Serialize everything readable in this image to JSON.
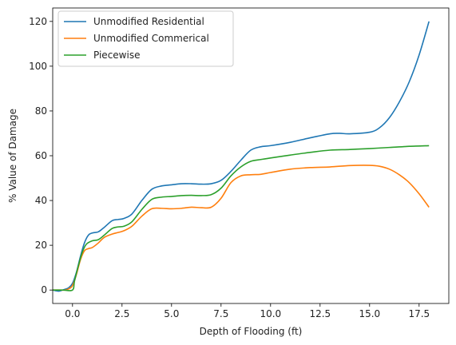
{
  "chart_data": {
    "type": "line",
    "xlabel": "Depth of Flooding (ft)",
    "ylabel": "% Value of Damage",
    "xlim": [
      -1.0,
      19.0
    ],
    "ylim": [
      -6,
      126
    ],
    "x_ticks": [
      "0.0",
      "2.5",
      "5.0",
      "7.5",
      "10.0",
      "12.5",
      "15.0",
      "17.5"
    ],
    "y_ticks": [
      "0",
      "20",
      "40",
      "60",
      "80",
      "100",
      "120"
    ],
    "grid": false,
    "legend_position": "top-left",
    "series": [
      {
        "name": "Unmodified Residential",
        "color": "#1f77b4",
        "x": [
          -1,
          -0.7,
          -0.4,
          -0.2,
          0,
          0.2,
          0.4,
          0.6,
          0.8,
          1,
          1.3,
          1.6,
          2,
          2.3,
          2.6,
          3,
          3.5,
          4,
          4.5,
          5,
          5.5,
          6,
          6.5,
          7,
          7.5,
          8,
          8.5,
          9,
          9.5,
          10,
          11,
          12,
          13,
          13.5,
          14,
          15,
          15.5,
          16,
          16.5,
          17,
          17.5,
          18
        ],
        "y": [
          0,
          -0.5,
          0.3,
          1,
          3,
          8,
          15,
          21,
          24.5,
          25.5,
          26,
          28,
          31,
          31.5,
          32,
          34,
          40,
          45,
          46.5,
          47,
          47.5,
          47.5,
          47.3,
          47.5,
          49,
          53,
          58,
          62.5,
          64,
          64.5,
          66,
          68,
          69.8,
          70,
          69.8,
          70.5,
          72.5,
          77,
          84,
          93,
          105,
          120
        ]
      },
      {
        "name": "Unmodified Commerical",
        "color": "#ff7f0e",
        "x": [
          -1,
          -0.7,
          -0.4,
          -0.2,
          0,
          0.2,
          0.4,
          0.6,
          0.8,
          1,
          1.3,
          1.6,
          2,
          2.3,
          2.6,
          3,
          3.5,
          4,
          4.5,
          5,
          5.5,
          6,
          6.5,
          7,
          7.5,
          8,
          8.5,
          9,
          9.5,
          10,
          11,
          12,
          13,
          14,
          15,
          15.5,
          16,
          16.5,
          17,
          17.5,
          18
        ],
        "y": [
          0,
          0,
          0,
          0.5,
          2,
          7,
          13.5,
          17.5,
          18.5,
          19,
          21,
          23.5,
          25,
          25.7,
          26.5,
          28.5,
          33,
          36.3,
          36.5,
          36.3,
          36.5,
          37,
          36.8,
          37,
          41,
          48,
          51,
          51.5,
          51.7,
          52.5,
          54,
          54.7,
          55,
          55.6,
          55.7,
          55.3,
          54,
          51.5,
          48,
          43,
          37
        ]
      },
      {
        "name": "Piecewise",
        "color": "#2ca02c",
        "x": [
          -1,
          -0.5,
          0,
          0.1,
          0.3,
          0.5,
          0.7,
          1,
          1.3,
          1.6,
          2,
          2.3,
          2.6,
          3,
          3.5,
          4,
          4.5,
          5,
          5.5,
          6,
          6.5,
          7,
          7.5,
          8,
          8.5,
          9,
          9.5,
          10,
          11,
          12,
          13,
          14,
          15,
          16,
          17,
          18
        ],
        "y": [
          0,
          0,
          0,
          4,
          11,
          17,
          20.5,
          22,
          22.5,
          24.5,
          27.5,
          28.2,
          28.5,
          30.5,
          36,
          40.5,
          41.5,
          41.8,
          42.2,
          42.3,
          42.2,
          42.6,
          45.5,
          51,
          55,
          57.5,
          58.3,
          59,
          60.3,
          61.5,
          62.5,
          62.8,
          63.2,
          63.7,
          64.2,
          64.5
        ]
      }
    ]
  }
}
